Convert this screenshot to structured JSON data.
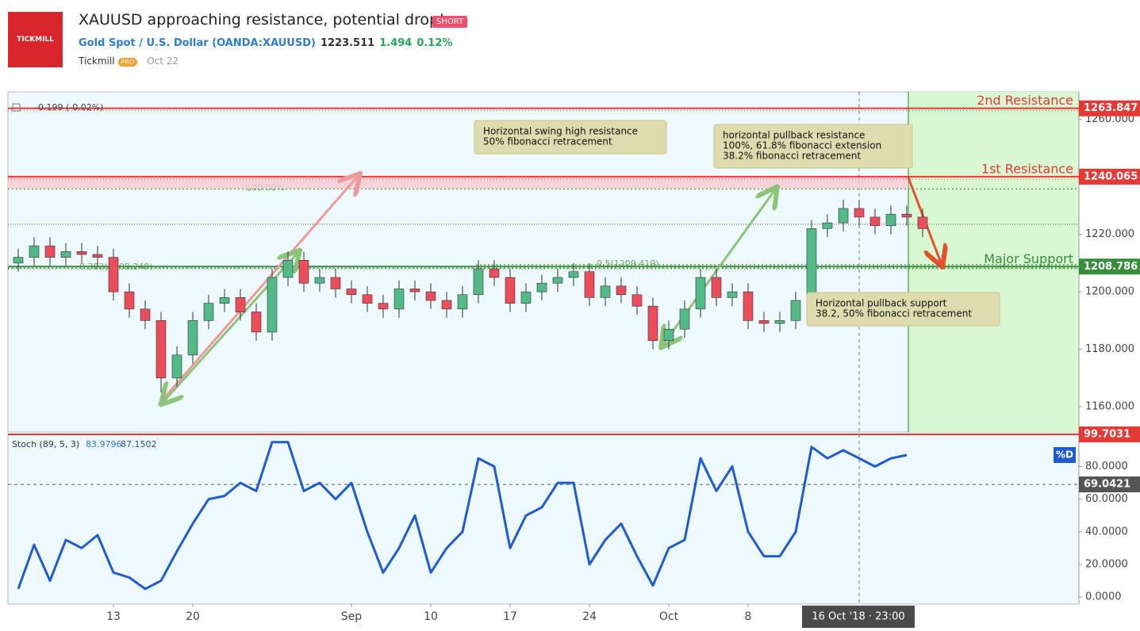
{
  "header": {
    "logo": "TICKMILL",
    "title": "XAUUSD approaching resistance, potential drop!",
    "badge": "SHORT",
    "symbol": "Gold Spot / U.S. Dollar (OANDA:XAUUSD)",
    "price": 1223.511,
    "change": 1.494,
    "change_pct": "0.12%",
    "author": "Tickmill",
    "author_badge": "PRO",
    "date": "Oct 22"
  },
  "chart_data": [
    {
      "type": "candlestick",
      "change_label": "-0.199 (-0.02%)",
      "crosshair_label": "16 Oct '18 · 23:00",
      "x": [
        -6,
        -5,
        -4,
        -3,
        -2,
        -1,
        0,
        1,
        2,
        3,
        4,
        5,
        6,
        7,
        8,
        9,
        10,
        11,
        12,
        13,
        14,
        15,
        16,
        17,
        18,
        19,
        20,
        21,
        22,
        23,
        24,
        25,
        26,
        27,
        28,
        29,
        30,
        31,
        32,
        33,
        34,
        35,
        36,
        37,
        38,
        39,
        40,
        41,
        42,
        43,
        44,
        45,
        46,
        47,
        48,
        49,
        50,
        51
      ],
      "open": [
        1210,
        1212,
        1216,
        1212,
        1214,
        1213,
        1212,
        1200,
        1194,
        1190,
        1170,
        1178,
        1190,
        1196,
        1198,
        1193,
        1186,
        1205,
        1211,
        1203,
        1205,
        1201,
        1199,
        1196,
        1194,
        1201,
        1200,
        1197,
        1194,
        1199,
        1208,
        1205,
        1196,
        1200,
        1203,
        1205,
        1207,
        1198,
        1202,
        1199,
        1195,
        1183,
        1187,
        1194,
        1205,
        1198,
        1200,
        1190,
        1189,
        1190,
        1197,
        1222,
        1224,
        1229,
        1226,
        1223,
        1227,
        1226
      ],
      "high": [
        1215,
        1219,
        1219,
        1217,
        1217,
        1216,
        1215,
        1203,
        1197,
        1193,
        1181,
        1193,
        1199,
        1201,
        1201,
        1196,
        1208,
        1214,
        1214,
        1208,
        1208,
        1204,
        1202,
        1199,
        1204,
        1204,
        1203,
        1200,
        1202,
        1211,
        1211,
        1208,
        1203,
        1206,
        1208,
        1210,
        1210,
        1205,
        1205,
        1202,
        1198,
        1190,
        1197,
        1208,
        1208,
        1203,
        1203,
        1193,
        1193,
        1200,
        1225,
        1227,
        1232,
        1232,
        1229,
        1230,
        1230,
        1229
      ],
      "low": [
        1207,
        1209,
        1209,
        1209,
        1210,
        1209,
        1197,
        1191,
        1187,
        1165,
        1167,
        1175,
        1187,
        1193,
        1190,
        1183,
        1183,
        1202,
        1200,
        1200,
        1198,
        1196,
        1193,
        1191,
        1191,
        1197,
        1194,
        1191,
        1191,
        1196,
        1202,
        1193,
        1193,
        1197,
        1200,
        1202,
        1195,
        1195,
        1196,
        1192,
        1180,
        1180,
        1184,
        1191,
        1195,
        1195,
        1187,
        1186,
        1186,
        1187,
        1194,
        1219,
        1221,
        1223,
        1220,
        1220,
        1223,
        1219
      ],
      "close": [
        1212,
        1216,
        1212,
        1214,
        1213,
        1212,
        1200,
        1194,
        1190,
        1170,
        1178,
        1190,
        1196,
        1198,
        1193,
        1186,
        1205,
        1211,
        1203,
        1205,
        1201,
        1199,
        1196,
        1194,
        1201,
        1200,
        1197,
        1194,
        1199,
        1208,
        1205,
        1196,
        1200,
        1203,
        1205,
        1207,
        1198,
        1202,
        1199,
        1195,
        1183,
        1187,
        1194,
        1205,
        1198,
        1200,
        1190,
        1189,
        1190,
        1197,
        1222,
        1224,
        1229,
        1226,
        1223,
        1227,
        1226,
        1222
      ],
      "up_color": "#53b987",
      "down_color": "#eb4d5c",
      "xlim": [
        -6.65,
        60.85
      ],
      "xticks": [
        {
          "value": 0,
          "label": "13"
        },
        {
          "value": 5,
          "label": "20"
        },
        {
          "value": 15,
          "label": "Sep"
        },
        {
          "value": 20,
          "label": "10"
        },
        {
          "value": 25,
          "label": "17"
        },
        {
          "value": 30,
          "label": "24"
        },
        {
          "value": 35,
          "label": "Oct"
        },
        {
          "value": 40,
          "label": "8"
        }
      ],
      "ylim": [
        1151.2,
        1269
      ],
      "yticks": [
        {
          "value": 1160,
          "label": "1160.000"
        },
        {
          "value": 1180,
          "label": "1180.000"
        },
        {
          "value": 1200,
          "label": "1200.000"
        },
        {
          "value": 1220,
          "label": "1220.000"
        },
        {
          "value": 1260,
          "label": "1260.000"
        }
      ],
      "levels": [
        {
          "label": "2nd Resistance",
          "value": 1263.847,
          "color": "#e53935"
        },
        {
          "label": "1st Resistance",
          "value": 1240.065,
          "color": "#e53935"
        },
        {
          "label": "Major Support",
          "value": 1208.786,
          "color": "#388e3c"
        }
      ],
      "fib_levels": [
        {
          "label": "100.00%",
          "value": 1235.8
        },
        {
          "label": "0.382(1208.240)",
          "value": 1208.24
        },
        {
          "label": "0.5(1209.419)",
          "value": 1209.419
        }
      ],
      "annotations": [
        [
          "Horizontal swing high resistance",
          "50% fibonacci retracement"
        ],
        [
          "horizontal pullback resistance",
          "100%, 61.8% fibonacci extension",
          "38.2% fibonacci retracement"
        ],
        [
          "Horizontal pullback support",
          "38.2, 50% fibonacci retracement"
        ]
      ]
    },
    {
      "type": "line",
      "legend": "Stoch (89, 5, 3)",
      "k_value": 83.9796,
      "d_value": 87.1502,
      "series": [
        {
          "name": "%D",
          "color": "#1f5bd1",
          "values": [
            5,
            32,
            10,
            35,
            30,
            38,
            15,
            12,
            5,
            10,
            28,
            45,
            60,
            62,
            70,
            65,
            95,
            95,
            65,
            70,
            60,
            70,
            40,
            15,
            30,
            50,
            15,
            30,
            40,
            85,
            80,
            30,
            50,
            55,
            70,
            70,
            20,
            35,
            45,
            25,
            7,
            30,
            35,
            85,
            65,
            80,
            40,
            25,
            25,
            40,
            92,
            85,
            90,
            85,
            80,
            85,
            87,
            null
          ]
        }
      ],
      "ylim": [
        -4.3,
        99.7
      ],
      "yticks": [
        {
          "value": 0,
          "label": "0.0000"
        },
        {
          "value": 20,
          "label": "20.0000"
        },
        {
          "value": 40,
          "label": "40.0000"
        },
        {
          "value": 60,
          "label": "60.0000"
        },
        {
          "value": 80,
          "label": "80.0000"
        }
      ],
      "levels": [
        {
          "value": 99.7031,
          "color": "#e53935"
        },
        {
          "value": 69.0421,
          "color": "#555555"
        }
      ]
    }
  ]
}
